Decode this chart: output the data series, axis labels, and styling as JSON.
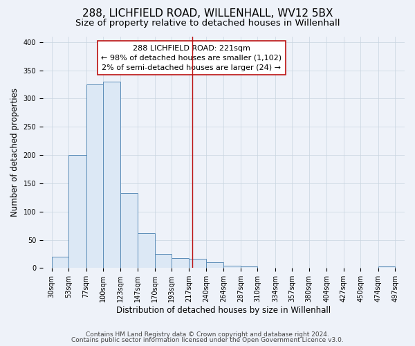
{
  "title": "288, LICHFIELD ROAD, WILLENHALL, WV12 5BX",
  "subtitle": "Size of property relative to detached houses in Willenhall",
  "xlabel": "Distribution of detached houses by size in Willenhall",
  "ylabel": "Number of detached properties",
  "bar_left_edges": [
    30,
    53,
    77,
    100,
    123,
    147,
    170,
    193,
    217,
    240,
    264,
    287,
    310,
    334,
    357,
    380,
    404,
    427,
    450,
    474
  ],
  "bar_widths": [
    23,
    24,
    23,
    23,
    24,
    23,
    23,
    24,
    23,
    24,
    23,
    23,
    24,
    23,
    23,
    24,
    23,
    23,
    24,
    23
  ],
  "bar_heights": [
    20,
    200,
    325,
    330,
    133,
    62,
    25,
    17,
    16,
    10,
    4,
    3,
    0,
    0,
    0,
    0,
    0,
    0,
    0,
    3
  ],
  "tick_labels": [
    "30sqm",
    "53sqm",
    "77sqm",
    "100sqm",
    "123sqm",
    "147sqm",
    "170sqm",
    "193sqm",
    "217sqm",
    "240sqm",
    "264sqm",
    "287sqm",
    "310sqm",
    "334sqm",
    "357sqm",
    "380sqm",
    "404sqm",
    "427sqm",
    "450sqm",
    "474sqm",
    "497sqm"
  ],
  "tick_positions": [
    30,
    53,
    77,
    100,
    123,
    147,
    170,
    193,
    217,
    240,
    264,
    287,
    310,
    334,
    357,
    380,
    404,
    427,
    450,
    474,
    497
  ],
  "bar_color": "#dce8f5",
  "bar_edge_color": "#5b8db8",
  "grid_color": "#c8d4e0",
  "background_color": "#eef2f9",
  "vline_x": 221,
  "vline_color": "#bb1111",
  "annotation_line1": "288 LICHFIELD ROAD: 221sqm",
  "annotation_line2": "← 98% of detached houses are smaller (1,102)",
  "annotation_line3": "2% of semi-detached houses are larger (24) →",
  "annotation_box_color": "#ffffff",
  "annotation_edge_color": "#bb1111",
  "ylim": [
    0,
    410
  ],
  "xlim": [
    18,
    510
  ],
  "yticks": [
    0,
    50,
    100,
    150,
    200,
    250,
    300,
    350,
    400
  ],
  "footer1": "Contains HM Land Registry data © Crown copyright and database right 2024.",
  "footer2": "Contains public sector information licensed under the Open Government Licence v3.0.",
  "title_fontsize": 11,
  "subtitle_fontsize": 9.5,
  "annotation_fontsize": 8,
  "axis_label_fontsize": 8.5,
  "tick_fontsize": 7,
  "footer_fontsize": 6.5
}
